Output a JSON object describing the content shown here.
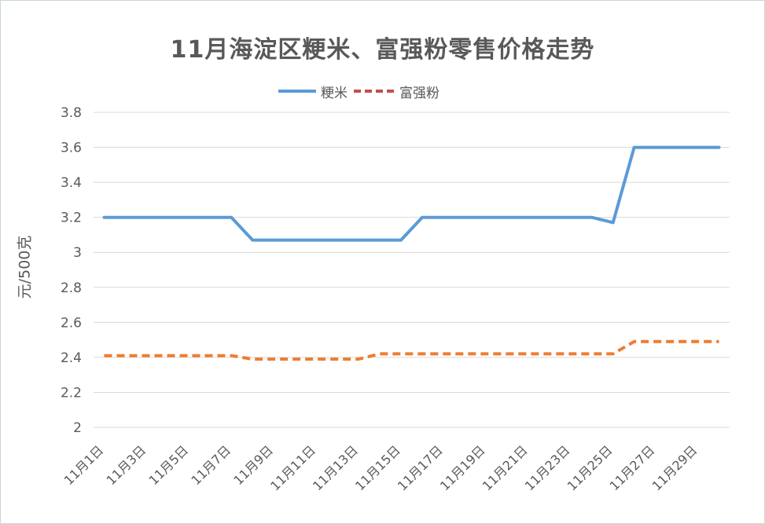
{
  "chart_data": {
    "type": "line",
    "title": "11月海淀区粳米、富强粉零售价格走势",
    "ylabel": "元/500克",
    "ylim": [
      2,
      3.8
    ],
    "yticks": [
      "3.8",
      "3.6",
      "3.4",
      "3.2",
      "3",
      "2.8",
      "2.6",
      "2.4",
      "2.2",
      "2"
    ],
    "ytick_values": [
      3.8,
      3.6,
      3.4,
      3.2,
      3.0,
      2.8,
      2.6,
      2.4,
      2.2,
      2.0
    ],
    "grid": true,
    "legend_position": "top-center",
    "x": [
      "11月1日",
      "11月2日",
      "11月3日",
      "11月4日",
      "11月5日",
      "11月6日",
      "11月7日",
      "11月8日",
      "11月9日",
      "11月10日",
      "11月11日",
      "11月12日",
      "11月13日",
      "11月14日",
      "11月15日",
      "11月16日",
      "11月17日",
      "11月18日",
      "11月19日",
      "11月20日",
      "11月21日",
      "11月22日",
      "11月23日",
      "11月24日",
      "11月25日",
      "11月26日",
      "11月27日",
      "11月28日",
      "11月29日",
      "11月30日"
    ],
    "xtick_labels": [
      "11月1日",
      "11月3日",
      "11月5日",
      "11月7日",
      "11月9日",
      "11月11日",
      "11月13日",
      "11月15日",
      "11月17日",
      "11月19日",
      "11月21日",
      "11月23日",
      "11月25日",
      "11月27日",
      "11月29日"
    ],
    "series": [
      {
        "name": "粳米",
        "color": "#5b9bd5",
        "style": "solid",
        "values": [
          3.2,
          3.2,
          3.2,
          3.2,
          3.2,
          3.2,
          3.2,
          3.07,
          3.07,
          3.07,
          3.07,
          3.07,
          3.07,
          3.07,
          3.07,
          3.2,
          3.2,
          3.2,
          3.2,
          3.2,
          3.2,
          3.2,
          3.2,
          3.2,
          3.17,
          3.6,
          3.6,
          3.6,
          3.6,
          3.6
        ]
      },
      {
        "name": "富强粉",
        "color": "#ed7d31",
        "style": "dashed",
        "values": [
          2.41,
          2.41,
          2.41,
          2.41,
          2.41,
          2.41,
          2.41,
          2.39,
          2.39,
          2.39,
          2.39,
          2.39,
          2.39,
          2.42,
          2.42,
          2.42,
          2.42,
          2.42,
          2.42,
          2.42,
          2.42,
          2.42,
          2.42,
          2.42,
          2.42,
          2.49,
          2.49,
          2.49,
          2.49,
          2.49
        ]
      }
    ]
  }
}
